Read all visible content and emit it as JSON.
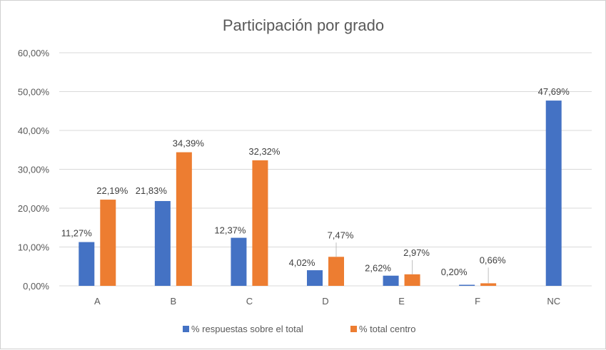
{
  "chart_data": {
    "type": "bar",
    "title": "Participación por grado",
    "xlabel": "",
    "ylabel": "",
    "categories": [
      "A",
      "B",
      "C",
      "D",
      "E",
      "F",
      "NC"
    ],
    "series": [
      {
        "name": "% respuestas sobre el total",
        "color": "#4472C4",
        "values": [
          11.27,
          21.83,
          12.37,
          4.02,
          2.62,
          0.2,
          47.69
        ],
        "labels": [
          "11,27%",
          "21,83%",
          "12,37%",
          "4,02%",
          "2,62%",
          "0,20%",
          "47,69%"
        ]
      },
      {
        "name": "% total centro",
        "color": "#ED7D31",
        "values": [
          22.19,
          34.39,
          32.32,
          7.47,
          2.97,
          0.66,
          null
        ],
        "labels": [
          "22,19%",
          "34,39%",
          "32,32%",
          "7,47%",
          "2,97%",
          "0,66%",
          null
        ]
      }
    ],
    "ylim": [
      0,
      60
    ],
    "yticks": [
      0,
      10,
      20,
      30,
      40,
      50,
      60
    ],
    "ytick_labels": [
      "0,00%",
      "10,00%",
      "20,00%",
      "30,00%",
      "40,00%",
      "50,00%",
      "60,00%"
    ],
    "grid": true,
    "legend_position": "bottom",
    "gridline_color": "#D9D9D9",
    "text_color": "#595959"
  }
}
